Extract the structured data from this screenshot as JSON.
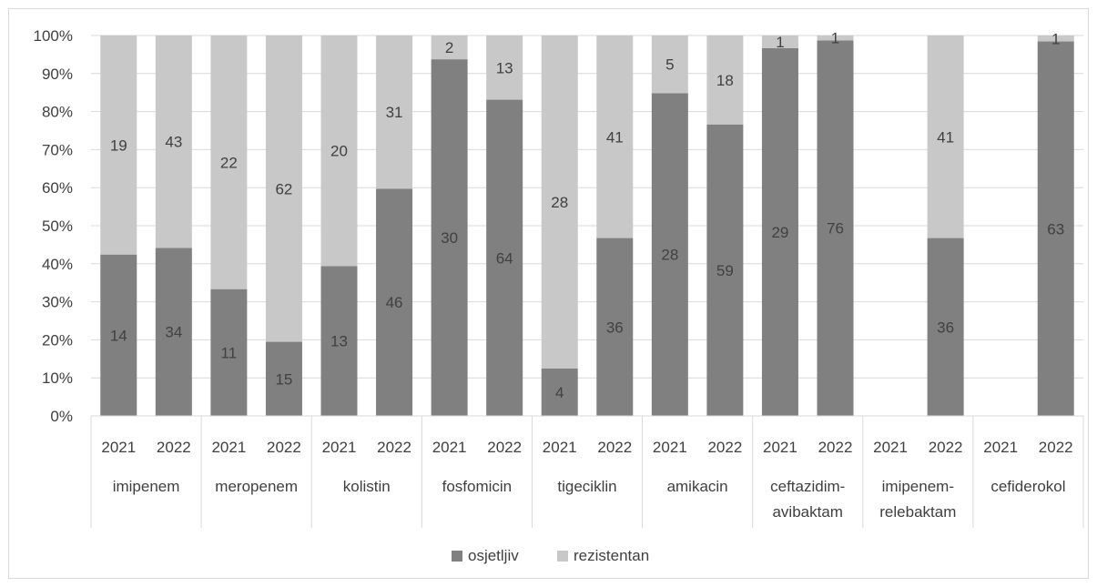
{
  "chart_data": {
    "type": "bar",
    "stacked": "percent",
    "groups": [
      {
        "label_lines": [
          "imipenem"
        ],
        "years": [
          "2021",
          "2022"
        ]
      },
      {
        "label_lines": [
          "meropenem"
        ],
        "years": [
          "2021",
          "2022"
        ]
      },
      {
        "label_lines": [
          "kolistin"
        ],
        "years": [
          "2021",
          "2022"
        ]
      },
      {
        "label_lines": [
          "fosfomicin"
        ],
        "years": [
          "2021",
          "2022"
        ]
      },
      {
        "label_lines": [
          "tigeciklin"
        ],
        "years": [
          "2021",
          "2022"
        ]
      },
      {
        "label_lines": [
          "amikacin"
        ],
        "years": [
          "2021",
          "2022"
        ]
      },
      {
        "label_lines": [
          "ceftazidim-",
          "avibaktam"
        ],
        "years": [
          "2021",
          "2022"
        ]
      },
      {
        "label_lines": [
          "imipenem-",
          "relebaktam"
        ],
        "years": [
          "2021",
          "2022"
        ]
      },
      {
        "label_lines": [
          "cefiderokol"
        ],
        "years": [
          "2021",
          "2022"
        ]
      }
    ],
    "series": [
      {
        "name": "osjetljiv",
        "color": "#808080",
        "values": [
          14,
          34,
          11,
          15,
          13,
          46,
          30,
          64,
          4,
          36,
          28,
          59,
          29,
          76,
          null,
          36,
          null,
          63
        ]
      },
      {
        "name": "rezistentan",
        "color": "#c8c8c8",
        "values": [
          19,
          43,
          22,
          62,
          20,
          31,
          2,
          13,
          28,
          41,
          5,
          18,
          1,
          1,
          null,
          41,
          null,
          1
        ]
      }
    ],
    "y_ticks": [
      "0%",
      "10%",
      "20%",
      "30%",
      "40%",
      "50%",
      "60%",
      "70%",
      "80%",
      "90%",
      "100%"
    ],
    "ylim": [
      0,
      100
    ],
    "grid": true,
    "legend_position": "bottom"
  }
}
